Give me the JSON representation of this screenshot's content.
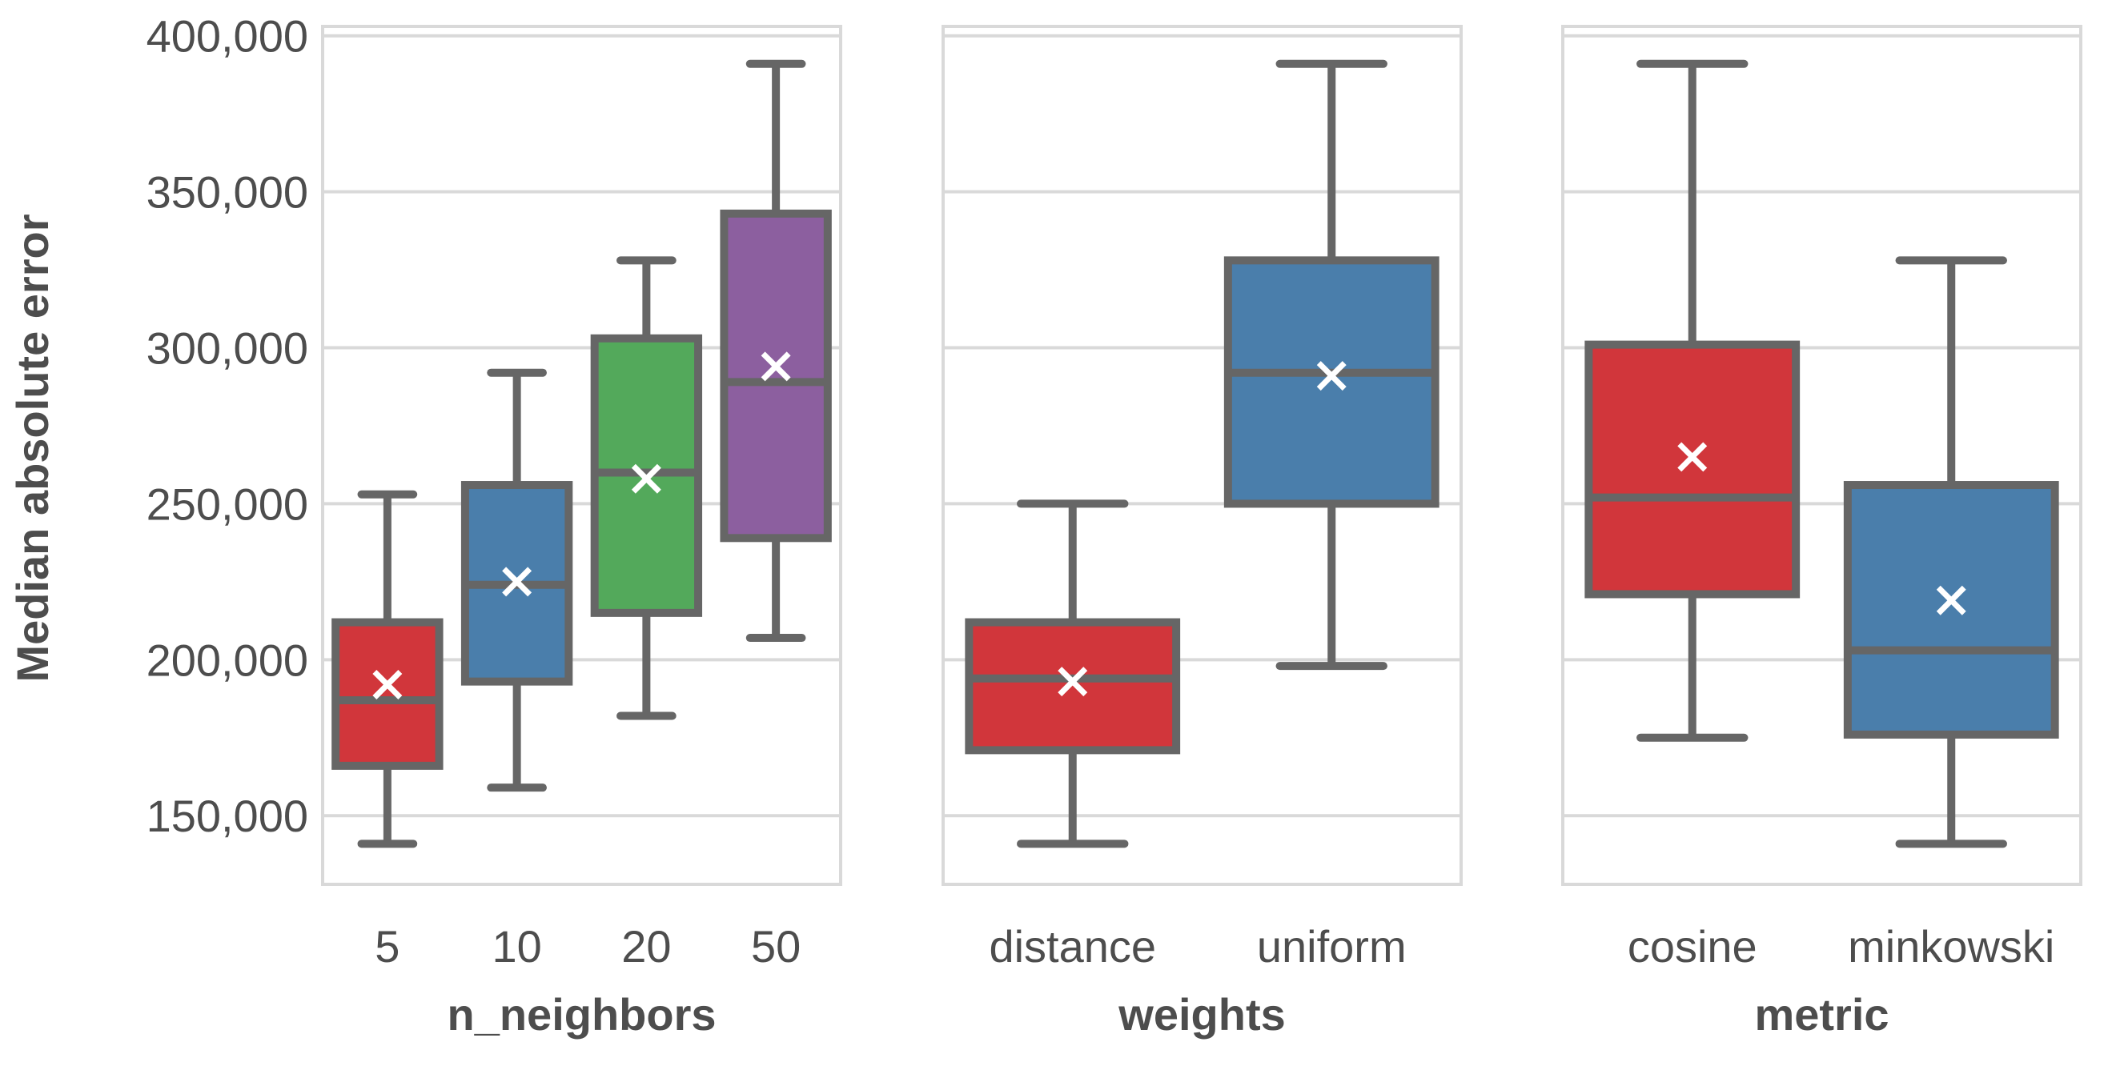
{
  "chart_data": {
    "type": "box",
    "ylabel": "Median absolute error",
    "y_ticks": [
      150000,
      200000,
      250000,
      300000,
      350000,
      400000
    ],
    "y_tick_labels": [
      "150,000",
      "200,000",
      "250,000",
      "300,000",
      "350,000",
      "400,000"
    ],
    "ylim": [
      128000,
      403000
    ],
    "grid": true,
    "mean_marker": "x",
    "colors": {
      "red": "#d1363b",
      "blue": "#4a7eab",
      "green": "#53a95b",
      "purple": "#8c5f9f",
      "box_edge": "#666666",
      "grid": "#d9d9d9",
      "mean": "#ffffff"
    },
    "panels": [
      {
        "xlabel": "n_neighbors",
        "boxes": [
          {
            "category": "5",
            "color": "#d1363b",
            "whisker_low": 141000,
            "q1": 166000,
            "median": 187000,
            "q3": 212000,
            "whisker_high": 253000,
            "mean": 192000
          },
          {
            "category": "10",
            "color": "#4a7eab",
            "whisker_low": 159000,
            "q1": 193000,
            "median": 224000,
            "q3": 256000,
            "whisker_high": 292000,
            "mean": 225000
          },
          {
            "category": "20",
            "color": "#53a95b",
            "whisker_low": 182000,
            "q1": 215000,
            "median": 260000,
            "q3": 303000,
            "whisker_high": 328000,
            "mean": 258000
          },
          {
            "category": "50",
            "color": "#8c5f9f",
            "whisker_low": 207000,
            "q1": 239000,
            "median": 289000,
            "q3": 343000,
            "whisker_high": 391000,
            "mean": 294000
          }
        ]
      },
      {
        "xlabel": "weights",
        "boxes": [
          {
            "category": "distance",
            "color": "#d1363b",
            "whisker_low": 141000,
            "q1": 171000,
            "median": 194000,
            "q3": 212000,
            "whisker_high": 250000,
            "mean": 193000
          },
          {
            "category": "uniform",
            "color": "#4a7eab",
            "whisker_low": 198000,
            "q1": 250000,
            "median": 292000,
            "q3": 328000,
            "whisker_high": 391000,
            "mean": 291000
          }
        ]
      },
      {
        "xlabel": "metric",
        "boxes": [
          {
            "category": "cosine",
            "color": "#d1363b",
            "whisker_low": 175000,
            "q1": 221000,
            "median": 252000,
            "q3": 301000,
            "whisker_high": 391000,
            "mean": 265000
          },
          {
            "category": "minkowski",
            "color": "#4a7eab",
            "whisker_low": 141000,
            "q1": 176000,
            "median": 203000,
            "q3": 256000,
            "whisker_high": 328000,
            "mean": 219000
          }
        ]
      }
    ]
  }
}
